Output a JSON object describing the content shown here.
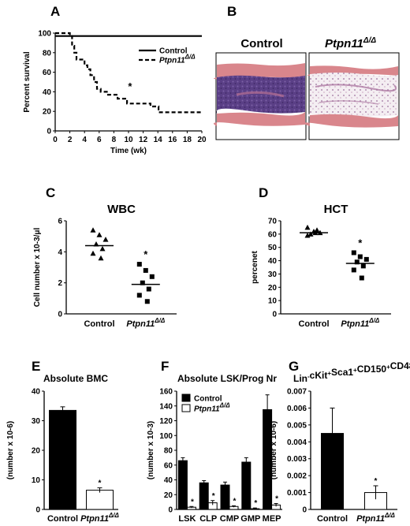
{
  "labels": {
    "A": "A",
    "B": "B",
    "C": "C",
    "D": "D",
    "E": "E",
    "F": "F",
    "G": "G"
  },
  "colors": {
    "control": "#000000",
    "mutant": "#ffffff",
    "tissue_pink": "#d9868c",
    "marrow_purple": "#5a3f86"
  },
  "histology": {
    "control_label": "Control",
    "mutant_label_base": "Ptpn11",
    "mutant_label_sup": "Δ/Δ"
  },
  "chart_data": [
    {
      "id": "A",
      "type": "line",
      "xlabel": "Time (wk)",
      "ylabel": "Percent survival",
      "xlim": [
        0,
        20
      ],
      "ylim": [
        0,
        100
      ],
      "xticks": [
        0,
        2,
        4,
        6,
        8,
        10,
        12,
        14,
        16,
        18,
        20
      ],
      "yticks": [
        0,
        20,
        40,
        60,
        80,
        100
      ],
      "legend_position": "top-right",
      "annotation": "*",
      "series": [
        {
          "name": "Control",
          "style": "solid",
          "points": [
            [
              0,
              97
            ],
            [
              20,
              97
            ]
          ]
        },
        {
          "name": "Ptpn11Δ/Δ",
          "name_base": "Ptpn11",
          "name_sup": "Δ/Δ",
          "style": "dashed",
          "points": [
            [
              0,
              100
            ],
            [
              2,
              100
            ],
            [
              2,
              97
            ],
            [
              2.3,
              97
            ],
            [
              2.3,
              87
            ],
            [
              2.6,
              87
            ],
            [
              2.6,
              80
            ],
            [
              2.9,
              80
            ],
            [
              2.9,
              73
            ],
            [
              4,
              73
            ],
            [
              4,
              67
            ],
            [
              4.4,
              67
            ],
            [
              4.4,
              63
            ],
            [
              4.8,
              63
            ],
            [
              4.8,
              57
            ],
            [
              5.3,
              57
            ],
            [
              5.3,
              50
            ],
            [
              5.7,
              50
            ],
            [
              5.7,
              43
            ],
            [
              6.2,
              43
            ],
            [
              6.2,
              40
            ],
            [
              7.2,
              40
            ],
            [
              7.2,
              37
            ],
            [
              8.5,
              37
            ],
            [
              8.5,
              33
            ],
            [
              9.8,
              33
            ],
            [
              9.8,
              28
            ],
            [
              13,
              28
            ],
            [
              13,
              25
            ],
            [
              14.1,
              25
            ],
            [
              14.1,
              19
            ],
            [
              20,
              19
            ]
          ]
        }
      ]
    },
    {
      "id": "C",
      "type": "scatter",
      "title": "WBC",
      "ylabel": "Cell number x 10-3/μl",
      "ylim": [
        0,
        6
      ],
      "yticks": [
        0,
        2,
        4,
        6
      ],
      "categories": [
        "Control",
        "Ptpn11Δ/Δ"
      ],
      "category_base": [
        "Control",
        "Ptpn11"
      ],
      "category_sup": [
        "",
        "Δ/Δ"
      ],
      "annotation": "*",
      "groups": [
        {
          "name": "Control",
          "marker": "triangle",
          "mean": 4.4,
          "values": [
            5.4,
            5.1,
            4.8,
            4.5,
            4.2,
            3.9,
            3.6
          ]
        },
        {
          "name": "Ptpn11Δ/Δ",
          "marker": "square",
          "mean": 1.9,
          "values": [
            3.2,
            2.8,
            2.4,
            2.0,
            1.6,
            1.2,
            0.8
          ]
        }
      ]
    },
    {
      "id": "D",
      "type": "scatter",
      "title": "HCT",
      "ylabel": "percenet",
      "ylim": [
        0,
        70
      ],
      "yticks": [
        0,
        10,
        20,
        30,
        40,
        50,
        60,
        70
      ],
      "categories": [
        "Control",
        "Ptpn11Δ/Δ"
      ],
      "category_base": [
        "Control",
        "Ptpn11"
      ],
      "category_sup": [
        "",
        "Δ/Δ"
      ],
      "annotation": "*",
      "groups": [
        {
          "name": "Control",
          "marker": "triangle",
          "mean": 61,
          "values": [
            65,
            62,
            61,
            60,
            63,
            59,
            61
          ]
        },
        {
          "name": "Ptpn11Δ/Δ",
          "marker": "square",
          "mean": 38,
          "values": [
            46,
            43,
            41,
            39,
            36,
            33,
            27
          ]
        }
      ]
    },
    {
      "id": "E",
      "type": "bar",
      "title": "Absolute BMC",
      "ylabel": "(number x 10-6)",
      "ylim": [
        0,
        40
      ],
      "yticks": [
        0,
        10,
        20,
        30,
        40
      ],
      "categories": [
        "Control",
        "Ptpn11Δ/Δ"
      ],
      "category_base": [
        "Control",
        "Ptpn11"
      ],
      "category_sup": [
        "",
        "Δ/Δ"
      ],
      "values": [
        33.5,
        6.5
      ],
      "errors": [
        1.2,
        0.8
      ],
      "fills": [
        "#000000",
        "#ffffff"
      ],
      "annotations": [
        "",
        "*"
      ]
    },
    {
      "id": "F",
      "type": "bar",
      "title": "Absolute LSK/Prog Nr",
      "ylabel": "(number x 10-3)",
      "ylim": [
        0,
        160
      ],
      "yticks": [
        0,
        20,
        40,
        60,
        80,
        100,
        120,
        140,
        160
      ],
      "legend_position": "top-left",
      "categories": [
        "LSK",
        "CLP",
        "CMP",
        "GMP",
        "MEP"
      ],
      "series": [
        {
          "name": "Control",
          "fill": "#000000",
          "values": [
            66,
            36,
            33,
            64,
            135
          ],
          "errors": [
            4,
            3,
            4,
            6,
            20
          ]
        },
        {
          "name": "Ptpn11Δ/Δ",
          "name_base": "Ptpn11",
          "name_sup": "Δ/Δ",
          "fill": "#ffffff",
          "values": [
            3,
            9,
            4,
            1,
            6
          ],
          "errors": [
            1,
            3,
            1,
            1,
            2
          ]
        }
      ],
      "annotation": "*"
    },
    {
      "id": "G",
      "type": "bar",
      "title_parts": [
        {
          "t": "Lin",
          "s": "-"
        },
        {
          "t": "cKit",
          "s": "+"
        },
        {
          "t": "Sca1",
          "s": "+"
        },
        {
          "t": "CD150",
          "s": "+"
        },
        {
          "t": "CD48",
          "s": "-"
        }
      ],
      "ylabel": "(number x 10-6)",
      "ylim": [
        0,
        0.007
      ],
      "yticks": [
        0,
        0.001,
        0.002,
        0.003,
        0.004,
        0.005,
        0.006,
        0.007
      ],
      "ytick_labels": [
        "0",
        "0.001",
        "0.002",
        "0.003",
        "0.004",
        "0.005",
        "0.006",
        "0.007"
      ],
      "categories": [
        "Control",
        "Ptpn11Δ/Δ"
      ],
      "category_base": [
        "Control",
        "Ptpn11"
      ],
      "category_sup": [
        "",
        "Δ/Δ"
      ],
      "values": [
        0.0045,
        0.001
      ],
      "errors": [
        0.0015,
        0.0004
      ],
      "fills": [
        "#000000",
        "#ffffff"
      ],
      "annotations": [
        "",
        "*"
      ]
    }
  ]
}
